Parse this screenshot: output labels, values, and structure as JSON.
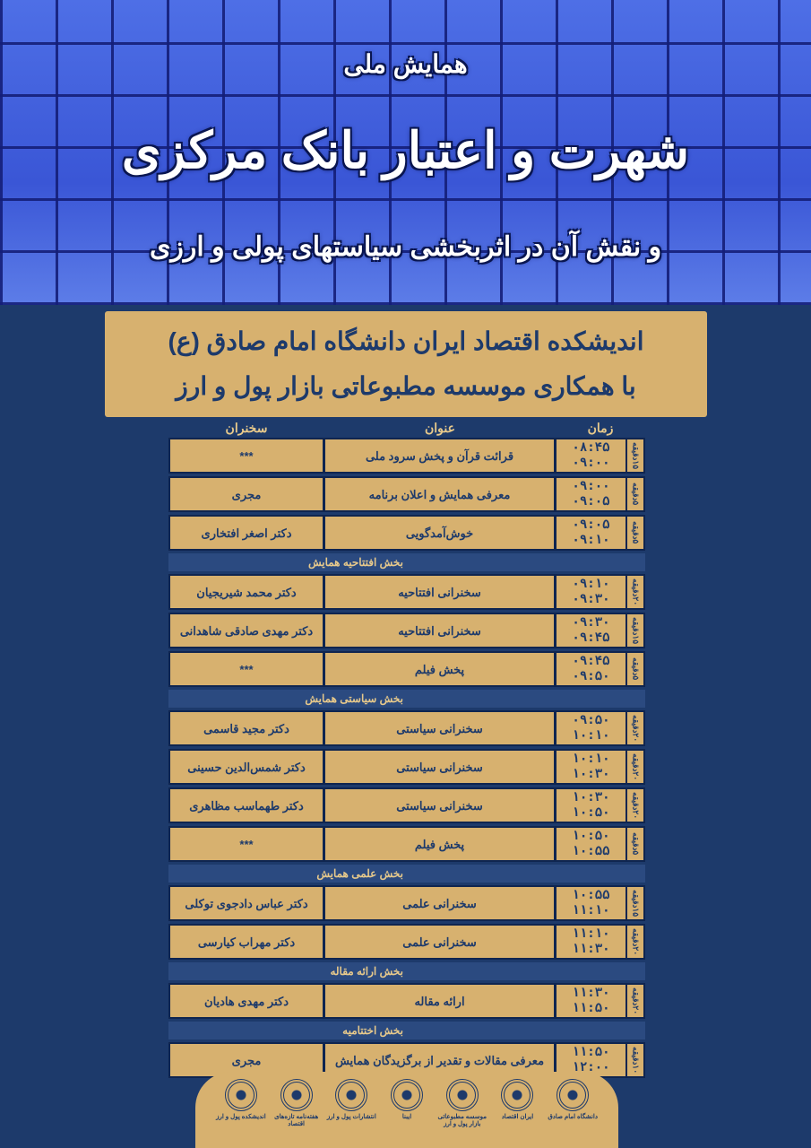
{
  "header": {
    "pre_title": "همایش ملی",
    "title": "شهرت و اعتبار بانک مرکزی",
    "subtitle": "و نقش آن در اثربخشی سیاستهای پولی و ارزی"
  },
  "organizer": {
    "line1": "اندیشکده اقتصاد ایران دانشگاه امام صادق (ع)",
    "line2": "با همکاری موسسه مطبوعاتی بازار پول و ارز"
  },
  "table": {
    "headers": {
      "time": "زمان",
      "title": "عنوان",
      "speaker": "سخنران"
    },
    "groups": [
      {
        "section": "",
        "rows": [
          {
            "duration": "۱۵دقیقه",
            "start": "۰۸:۴۵",
            "end": "۰۹:۰۰",
            "title": "قرائت قرآن و پخش سرود ملی",
            "speaker": "***"
          },
          {
            "duration": "۵دقیقه",
            "start": "۰۹:۰۰",
            "end": "۰۹:۰۵",
            "title": "معرفی همایش و اعلان برنامه",
            "speaker": "مجری"
          },
          {
            "duration": "۵دقیقه",
            "start": "۰۹:۰۵",
            "end": "۰۹:۱۰",
            "title": "خوش‌آمدگویی",
            "speaker": "دکتر اصغر افتخاری"
          }
        ]
      },
      {
        "section": "بخش افتتاحیه همایش",
        "rows": [
          {
            "duration": "۲۰دقیقه",
            "start": "۰۹:۱۰",
            "end": "۰۹:۳۰",
            "title": "سخنرانی افتتاحیه",
            "speaker": "دکتر محمد شیریجیان"
          },
          {
            "duration": "۱۵دقیقه",
            "start": "۰۹:۳۰",
            "end": "۰۹:۴۵",
            "title": "سخنرانی افتتاحیه",
            "speaker": "دکتر مهدی صادقی شاهدانی"
          },
          {
            "duration": "۵دقیقه",
            "start": "۰۹:۴۵",
            "end": "۰۹:۵۰",
            "title": "پخش فیلم",
            "speaker": "***"
          }
        ]
      },
      {
        "section": "بخش سیاستی همایش",
        "rows": [
          {
            "duration": "۲۰دقیقه",
            "start": "۰۹:۵۰",
            "end": "۱۰:۱۰",
            "title": "سخنرانی سیاستی",
            "speaker": "دکتر مجید قاسمی"
          },
          {
            "duration": "۲۰دقیقه",
            "start": "۱۰:۱۰",
            "end": "۱۰:۳۰",
            "title": "سخنرانی سیاستی",
            "speaker": "دکتر شمس‌الدین حسینی"
          },
          {
            "duration": "۲۰دقیقه",
            "start": "۱۰:۳۰",
            "end": "۱۰:۵۰",
            "title": "سخنرانی سیاستی",
            "speaker": "دکتر طهماسب مظاهری"
          },
          {
            "duration": "۵دقیقه",
            "start": "۱۰:۵۰",
            "end": "۱۰:۵۵",
            "title": "پخش فیلم",
            "speaker": "***"
          }
        ]
      },
      {
        "section": "بخش علمی همایش",
        "rows": [
          {
            "duration": "۱۵دقیقه",
            "start": "۱۰:۵۵",
            "end": "۱۱:۱۰",
            "title": "سخنرانی علمی",
            "speaker": "دکتر عباس دادجوی توکلی"
          },
          {
            "duration": "۲۰دقیقه",
            "start": "۱۱:۱۰",
            "end": "۱۱:۳۰",
            "title": "سخنرانی علمی",
            "speaker": "دکتر مهراب کیارسی"
          }
        ]
      },
      {
        "section": "بخش ارائه مقاله",
        "rows": [
          {
            "duration": "۲۰دقیقه",
            "start": "۱۱:۳۰",
            "end": "۱۱:۵۰",
            "title": "ارائه مقاله",
            "speaker": "دکتر مهدی هادیان"
          }
        ]
      },
      {
        "section": "بخش اختتامیه",
        "rows": [
          {
            "duration": "۱۰دقیقه",
            "start": "۱۱:۵۰",
            "end": "۱۲:۰۰",
            "title": "معرفی مقالات و تقدیر از برگزیدگان همایش",
            "speaker": "مجری"
          }
        ]
      }
    ]
  },
  "logos": [
    "دانشگاه امام صادق",
    "ایران اقتصاد",
    "موسسه مطبوعاتی بازار پول و ارز",
    "ایبنا",
    "انتشارات پول و ارز",
    "هفته‌نامه تازه‌های اقتصاد",
    "اندیشکده پول و ارز"
  ],
  "colors": {
    "navy": "#1d3a6b",
    "tan": "#d7b16f",
    "hero_blue": "#3a56d6"
  }
}
